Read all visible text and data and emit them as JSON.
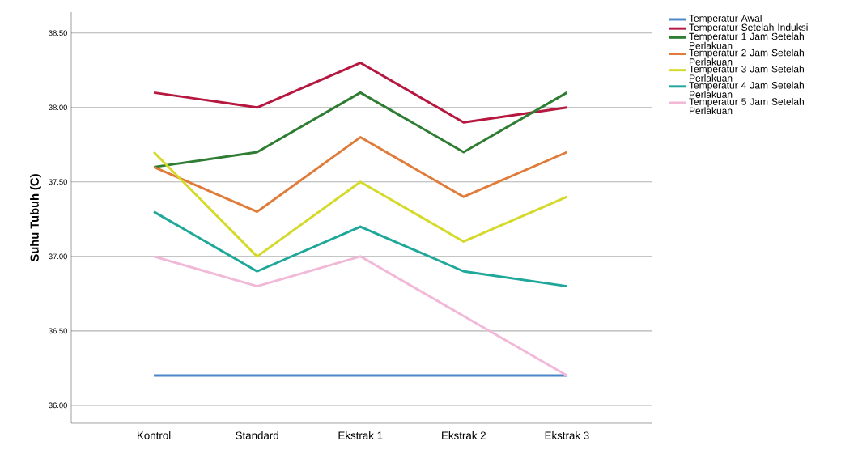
{
  "chart_data": {
    "type": "line",
    "ylabel": "Suhu Tubuh (C)",
    "categories": [
      "Kontrol",
      "Standard",
      "Ekstrak 1",
      "Ekstrak 2",
      "Ekstrak 3"
    ],
    "series": [
      {
        "name": "Temperatur Awal",
        "color": "#4a86c8",
        "values": [
          36.2,
          36.2,
          36.2,
          36.2,
          36.2
        ]
      },
      {
        "name": "Temperatur Setelah Induksi",
        "color": "#b5173f",
        "values": [
          38.1,
          38.0,
          38.3,
          37.9,
          38.0
        ]
      },
      {
        "name": "Temperatur 1 Jam Setelah Perlakuan",
        "color": "#2e7d32",
        "values": [
          37.6,
          37.7,
          38.1,
          37.7,
          38.1
        ]
      },
      {
        "name": "Temperatur 2 Jam Setelah Perlakuan",
        "color": "#e07b39",
        "values": [
          37.6,
          37.3,
          37.8,
          37.4,
          37.7
        ]
      },
      {
        "name": "Temperatur 3 Jam Setelah Perlakuan",
        "color": "#d4d92a",
        "values": [
          37.7,
          37.0,
          37.5,
          37.1,
          37.4
        ]
      },
      {
        "name": "Temperatur 4 Jam Setelah Perlakuan",
        "color": "#1fa89a",
        "values": [
          37.3,
          36.9,
          37.2,
          36.9,
          36.8
        ]
      },
      {
        "name": "Temperatur 5 Jam Setelah Perlakuan",
        "color": "#f2b8d8",
        "values": [
          37.0,
          36.8,
          37.0,
          36.6,
          36.2
        ]
      }
    ],
    "ylim": [
      35.88,
      38.64
    ],
    "yticks": [
      {
        "value": 36.0,
        "label": "36.00"
      },
      {
        "value": 36.5,
        "label": "36.50"
      },
      {
        "value": 37.0,
        "label": "37.00"
      },
      {
        "value": 37.5,
        "label": "37.50"
      },
      {
        "value": 38.0,
        "label": "38.00"
      },
      {
        "value": 38.5,
        "label": "38.50"
      }
    ],
    "grid": "y",
    "legend": "right",
    "marker": "none",
    "line_style": "solid"
  }
}
